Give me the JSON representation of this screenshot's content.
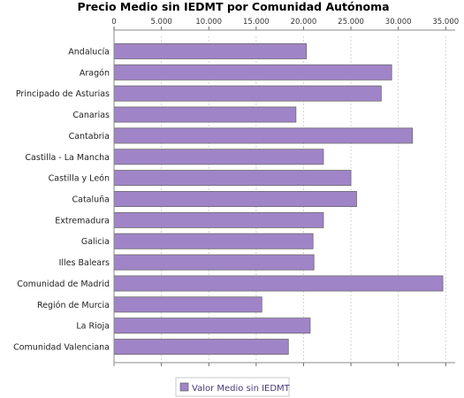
{
  "chart_data": {
    "type": "bar",
    "orientation": "horizontal",
    "title": "Precio Medio sin IEDMT por Comunidad Autónoma",
    "xlabel": "",
    "ylabel": "",
    "categories": [
      "Andalucía",
      "Aragón",
      "Principado de Asturias",
      "Canarias",
      "Cantabria",
      "Castilla - La Mancha",
      "Castilla y León",
      "Cataluña",
      "Extremadura",
      "Galicia",
      "Illes Balears",
      "Comunidad de Madrid",
      "Región de Murcia",
      "La Rioja",
      "Comunidad Valenciana"
    ],
    "series": [
      {
        "name": "Valor Medio sin IEDMT",
        "color": "#a084c8",
        "values": [
          20300,
          29300,
          28200,
          19200,
          31500,
          22100,
          25000,
          25600,
          22100,
          21000,
          21100,
          34700,
          15600,
          20700,
          18400
        ]
      }
    ],
    "xlim": [
      0,
      36000
    ],
    "xticks": [
      0,
      5000,
      10000,
      15000,
      20000,
      25000,
      30000,
      35000
    ],
    "xtick_labels": [
      "0",
      "5.000",
      "10.000",
      "15.000",
      "20.000",
      "25.000",
      "30.000",
      "35.000"
    ],
    "xaxis_position": "top-and-bottom",
    "grid": true,
    "legend": "bottom-center"
  }
}
